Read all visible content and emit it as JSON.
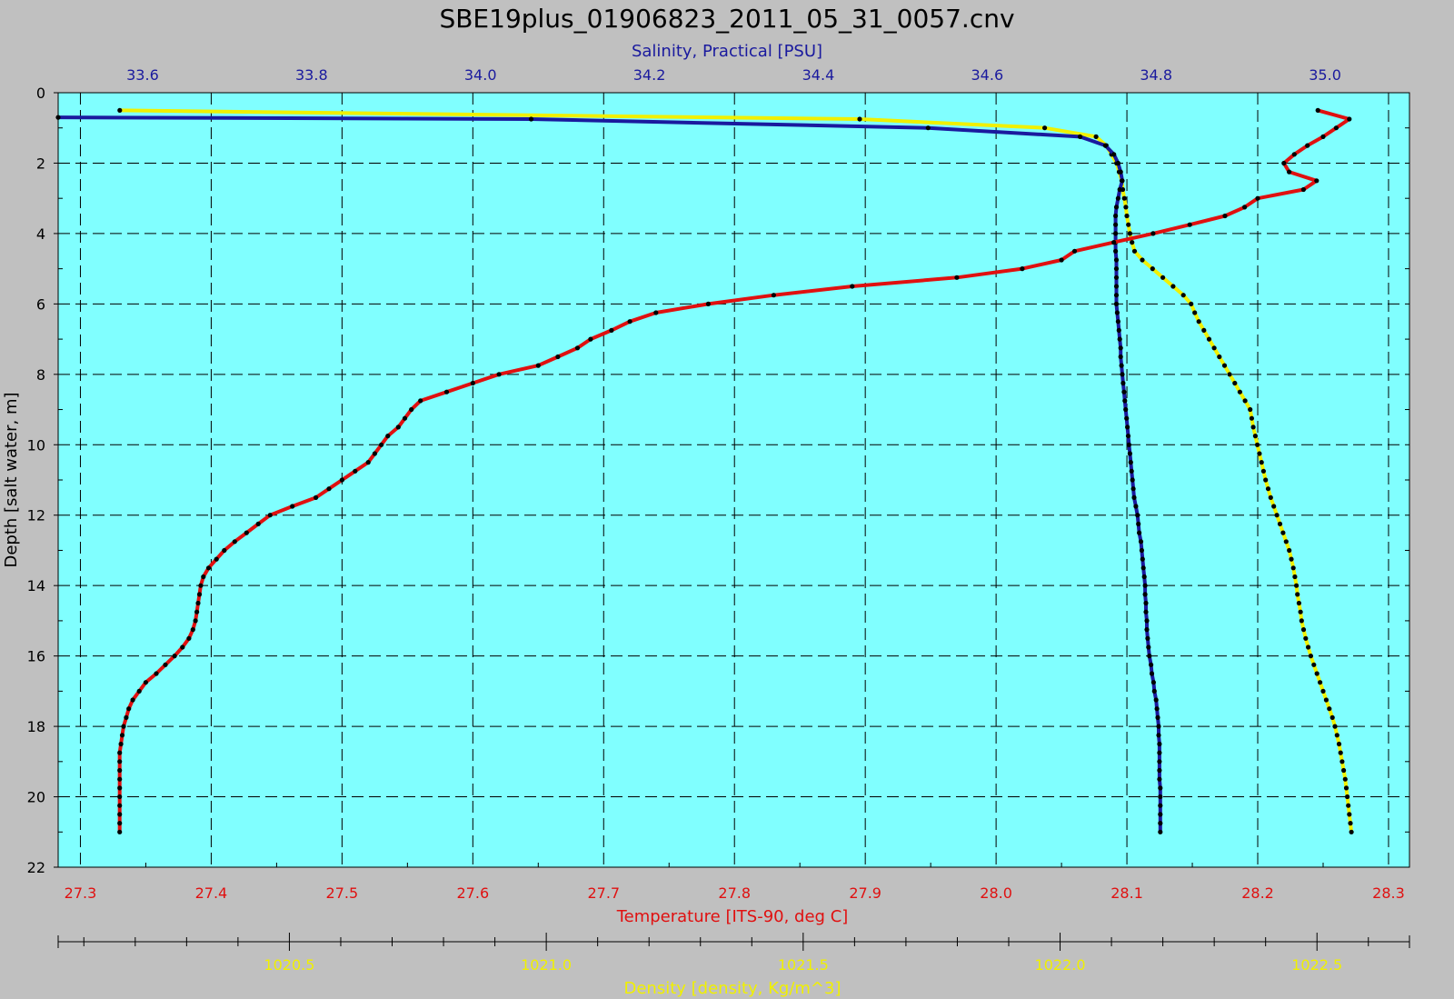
{
  "chart_data": {
    "type": "line",
    "title": "SBE19plus_01906823_2011_05_31_0057.cnv",
    "grid": true,
    "y_axis": {
      "label": "Depth [salt water, m]",
      "range": [
        0,
        22
      ],
      "inverted": true,
      "ticks": [
        "0",
        "2",
        "4",
        "6",
        "8",
        "10",
        "12",
        "14",
        "16",
        "18",
        "20",
        "22"
      ]
    },
    "axes": {
      "salinity": {
        "label": "Salinity, Practical [PSU]",
        "position": "top",
        "color": "#1a1a9e",
        "range": [
          33.5,
          35.1
        ],
        "ticks": [
          {
            "value": 33.6,
            "label": "33.6"
          },
          {
            "value": 33.8,
            "label": "33.8"
          },
          {
            "value": 34.0,
            "label": "34.0"
          },
          {
            "value": 34.2,
            "label": "34.2"
          },
          {
            "value": 34.4,
            "label": "34.4"
          },
          {
            "value": 34.6,
            "label": "34.6"
          },
          {
            "value": 34.8,
            "label": "34.8"
          },
          {
            "value": 35.0,
            "label": "35.0"
          }
        ]
      },
      "temperature": {
        "label": "Temperature [ITS-90, deg C]",
        "position": "bottom",
        "color": "#e01010",
        "range": [
          27.283,
          28.316
        ],
        "ticks": [
          {
            "value": 27.3,
            "label": "27.3"
          },
          {
            "value": 27.4,
            "label": "27.4"
          },
          {
            "value": 27.5,
            "label": "27.5"
          },
          {
            "value": 27.6,
            "label": "27.6"
          },
          {
            "value": 27.7,
            "label": "27.7"
          },
          {
            "value": 27.8,
            "label": "27.8"
          },
          {
            "value": 27.9,
            "label": "27.9"
          },
          {
            "value": 28.0,
            "label": "28.0"
          },
          {
            "value": 28.1,
            "label": "28.1"
          },
          {
            "value": 28.2,
            "label": "28.2"
          },
          {
            "value": 28.3,
            "label": "28.3"
          }
        ]
      },
      "density": {
        "label": "Density [density, Kg/m^3]",
        "position": "bottom-outer",
        "color": "#f0f000",
        "range": [
          1020.05,
          1022.68
        ],
        "ticks": [
          {
            "value": 1020.5,
            "label": "1020.5"
          },
          {
            "value": 1021.0,
            "label": "1021.0"
          },
          {
            "value": 1021.5,
            "label": "1021.5"
          },
          {
            "value": 1022.0,
            "label": "1022.0"
          },
          {
            "value": 1022.5,
            "label": "1022.5"
          }
        ]
      }
    },
    "series": [
      {
        "name": "Temperature",
        "axis": "temperature",
        "color": "#e01010",
        "points": [
          [
            28.246,
            0.5
          ],
          [
            28.27,
            0.75
          ],
          [
            28.26,
            1.0
          ],
          [
            28.25,
            1.25
          ],
          [
            28.238,
            1.5
          ],
          [
            28.228,
            1.75
          ],
          [
            28.22,
            2.0
          ],
          [
            28.224,
            2.25
          ],
          [
            28.245,
            2.5
          ],
          [
            28.235,
            2.75
          ],
          [
            28.2,
            3.0
          ],
          [
            28.19,
            3.25
          ],
          [
            28.175,
            3.5
          ],
          [
            28.148,
            3.75
          ],
          [
            28.12,
            4.0
          ],
          [
            28.09,
            4.25
          ],
          [
            28.06,
            4.5
          ],
          [
            28.05,
            4.75
          ],
          [
            28.02,
            5.0
          ],
          [
            27.97,
            5.25
          ],
          [
            27.89,
            5.5
          ],
          [
            27.83,
            5.75
          ],
          [
            27.78,
            6.0
          ],
          [
            27.74,
            6.25
          ],
          [
            27.72,
            6.5
          ],
          [
            27.706,
            6.75
          ],
          [
            27.69,
            7.0
          ],
          [
            27.68,
            7.25
          ],
          [
            27.665,
            7.5
          ],
          [
            27.65,
            7.75
          ],
          [
            27.62,
            8.0
          ],
          [
            27.6,
            8.25
          ],
          [
            27.58,
            8.5
          ],
          [
            27.56,
            8.75
          ],
          [
            27.553,
            9.0
          ],
          [
            27.548,
            9.25
          ],
          [
            27.543,
            9.5
          ],
          [
            27.535,
            9.75
          ],
          [
            27.53,
            10.0
          ],
          [
            27.525,
            10.25
          ],
          [
            27.52,
            10.5
          ],
          [
            27.51,
            10.75
          ],
          [
            27.5,
            11.0
          ],
          [
            27.49,
            11.25
          ],
          [
            27.48,
            11.5
          ],
          [
            27.462,
            11.75
          ],
          [
            27.445,
            12.0
          ],
          [
            27.436,
            12.25
          ],
          [
            27.427,
            12.5
          ],
          [
            27.418,
            12.75
          ],
          [
            27.41,
            13.0
          ],
          [
            27.404,
            13.25
          ],
          [
            27.398,
            13.5
          ],
          [
            27.394,
            13.75
          ],
          [
            27.392,
            14.0
          ],
          [
            27.391,
            14.25
          ],
          [
            27.39,
            14.5
          ],
          [
            27.389,
            14.75
          ],
          [
            27.388,
            15.0
          ],
          [
            27.386,
            15.25
          ],
          [
            27.383,
            15.5
          ],
          [
            27.378,
            15.75
          ],
          [
            27.372,
            16.0
          ],
          [
            27.365,
            16.25
          ],
          [
            27.358,
            16.5
          ],
          [
            27.35,
            16.75
          ],
          [
            27.345,
            17.0
          ],
          [
            27.34,
            17.25
          ],
          [
            27.337,
            17.5
          ],
          [
            27.335,
            17.75
          ],
          [
            27.333,
            18.0
          ],
          [
            27.332,
            18.25
          ],
          [
            27.331,
            18.5
          ],
          [
            27.33,
            18.75
          ],
          [
            27.33,
            19.0
          ],
          [
            27.33,
            19.25
          ],
          [
            27.33,
            19.5
          ],
          [
            27.33,
            19.75
          ],
          [
            27.33,
            20.0
          ],
          [
            27.33,
            20.25
          ],
          [
            27.33,
            20.5
          ],
          [
            27.33,
            20.75
          ],
          [
            27.33,
            21.0
          ]
        ]
      },
      {
        "name": "Salinity",
        "axis": "salinity",
        "color": "#1a1a9e",
        "points": [
          [
            33.5,
            0.7
          ],
          [
            34.06,
            0.75
          ],
          [
            34.53,
            1.0
          ],
          [
            34.71,
            1.25
          ],
          [
            34.74,
            1.5
          ],
          [
            34.75,
            1.75
          ],
          [
            34.755,
            2.0
          ],
          [
            34.758,
            2.25
          ],
          [
            34.76,
            2.5
          ],
          [
            34.757,
            2.75
          ],
          [
            34.755,
            3.0
          ],
          [
            34.753,
            3.25
          ],
          [
            34.752,
            3.5
          ],
          [
            34.752,
            3.75
          ],
          [
            34.752,
            4.0
          ],
          [
            34.752,
            4.25
          ],
          [
            34.752,
            4.5
          ],
          [
            34.753,
            4.75
          ],
          [
            34.753,
            5.0
          ],
          [
            34.753,
            5.25
          ],
          [
            34.753,
            5.5
          ],
          [
            34.753,
            5.75
          ],
          [
            34.753,
            6.0
          ],
          [
            34.754,
            6.25
          ],
          [
            34.755,
            6.5
          ],
          [
            34.756,
            6.75
          ],
          [
            34.757,
            7.0
          ],
          [
            34.758,
            7.25
          ],
          [
            34.758,
            7.5
          ],
          [
            34.759,
            7.75
          ],
          [
            34.76,
            8.0
          ],
          [
            34.761,
            8.25
          ],
          [
            34.762,
            8.5
          ],
          [
            34.763,
            8.75
          ],
          [
            34.764,
            9.0
          ],
          [
            34.765,
            9.25
          ],
          [
            34.766,
            9.5
          ],
          [
            34.767,
            9.75
          ],
          [
            34.768,
            10.0
          ],
          [
            34.769,
            10.25
          ],
          [
            34.77,
            10.5
          ],
          [
            34.771,
            10.75
          ],
          [
            34.772,
            11.0
          ],
          [
            34.773,
            11.25
          ],
          [
            34.774,
            11.5
          ],
          [
            34.776,
            11.75
          ],
          [
            34.778,
            12.0
          ],
          [
            34.779,
            12.25
          ],
          [
            34.78,
            12.5
          ],
          [
            34.782,
            12.75
          ],
          [
            34.783,
            13.0
          ],
          [
            34.784,
            13.25
          ],
          [
            34.785,
            13.5
          ],
          [
            34.786,
            13.75
          ],
          [
            34.787,
            14.0
          ],
          [
            34.787,
            14.25
          ],
          [
            34.788,
            14.5
          ],
          [
            34.788,
            14.75
          ],
          [
            34.789,
            15.0
          ],
          [
            34.789,
            15.25
          ],
          [
            34.79,
            15.5
          ],
          [
            34.791,
            15.75
          ],
          [
            34.792,
            16.0
          ],
          [
            34.794,
            16.25
          ],
          [
            34.795,
            16.5
          ],
          [
            34.797,
            16.75
          ],
          [
            34.798,
            17.0
          ],
          [
            34.8,
            17.25
          ],
          [
            34.801,
            17.5
          ],
          [
            34.802,
            17.75
          ],
          [
            34.803,
            18.0
          ],
          [
            34.803,
            18.25
          ],
          [
            34.804,
            18.5
          ],
          [
            34.804,
            18.75
          ],
          [
            34.804,
            19.0
          ],
          [
            34.804,
            19.25
          ],
          [
            34.804,
            19.5
          ],
          [
            34.805,
            19.75
          ],
          [
            34.805,
            20.0
          ],
          [
            34.805,
            20.25
          ],
          [
            34.805,
            20.5
          ],
          [
            34.805,
            20.75
          ],
          [
            34.805,
            21.0
          ]
        ]
      },
      {
        "name": "Density",
        "axis": "density",
        "color": "#f0f000",
        "points": [
          [
            1020.17,
            0.5
          ],
          [
            1021.61,
            0.75
          ],
          [
            1021.97,
            1.0
          ],
          [
            1022.07,
            1.25
          ],
          [
            1022.09,
            1.5
          ],
          [
            1022.1,
            1.75
          ],
          [
            1022.11,
            2.0
          ],
          [
            1022.115,
            2.25
          ],
          [
            1022.12,
            2.5
          ],
          [
            1022.122,
            2.75
          ],
          [
            1022.125,
            3.0
          ],
          [
            1022.128,
            3.25
          ],
          [
            1022.13,
            3.5
          ],
          [
            1022.133,
            3.75
          ],
          [
            1022.136,
            4.0
          ],
          [
            1022.14,
            4.25
          ],
          [
            1022.145,
            4.5
          ],
          [
            1022.16,
            4.75
          ],
          [
            1022.18,
            5.0
          ],
          [
            1022.2,
            5.25
          ],
          [
            1022.22,
            5.5
          ],
          [
            1022.24,
            5.75
          ],
          [
            1022.255,
            6.0
          ],
          [
            1022.262,
            6.25
          ],
          [
            1022.27,
            6.5
          ],
          [
            1022.28,
            6.75
          ],
          [
            1022.29,
            7.0
          ],
          [
            1022.3,
            7.25
          ],
          [
            1022.31,
            7.5
          ],
          [
            1022.32,
            7.75
          ],
          [
            1022.33,
            8.0
          ],
          [
            1022.34,
            8.25
          ],
          [
            1022.35,
            8.5
          ],
          [
            1022.36,
            8.75
          ],
          [
            1022.37,
            9.0
          ],
          [
            1022.373,
            9.25
          ],
          [
            1022.376,
            9.5
          ],
          [
            1022.38,
            9.75
          ],
          [
            1022.384,
            10.0
          ],
          [
            1022.388,
            10.25
          ],
          [
            1022.392,
            10.5
          ],
          [
            1022.396,
            10.75
          ],
          [
            1022.4,
            11.0
          ],
          [
            1022.405,
            11.25
          ],
          [
            1022.41,
            11.5
          ],
          [
            1022.416,
            11.75
          ],
          [
            1022.422,
            12.0
          ],
          [
            1022.428,
            12.25
          ],
          [
            1022.434,
            12.5
          ],
          [
            1022.44,
            12.75
          ],
          [
            1022.446,
            13.0
          ],
          [
            1022.45,
            13.25
          ],
          [
            1022.454,
            13.5
          ],
          [
            1022.457,
            13.75
          ],
          [
            1022.46,
            14.0
          ],
          [
            1022.462,
            14.25
          ],
          [
            1022.465,
            14.5
          ],
          [
            1022.468,
            14.75
          ],
          [
            1022.47,
            15.0
          ],
          [
            1022.474,
            15.25
          ],
          [
            1022.478,
            15.5
          ],
          [
            1022.483,
            15.75
          ],
          [
            1022.488,
            16.0
          ],
          [
            1022.494,
            16.25
          ],
          [
            1022.5,
            16.5
          ],
          [
            1022.506,
            16.75
          ],
          [
            1022.512,
            17.0
          ],
          [
            1022.518,
            17.25
          ],
          [
            1022.524,
            17.5
          ],
          [
            1022.53,
            17.75
          ],
          [
            1022.535,
            18.0
          ],
          [
            1022.539,
            18.25
          ],
          [
            1022.543,
            18.5
          ],
          [
            1022.546,
            18.75
          ],
          [
            1022.549,
            19.0
          ],
          [
            1022.552,
            19.25
          ],
          [
            1022.555,
            19.5
          ],
          [
            1022.557,
            19.75
          ],
          [
            1022.559,
            20.0
          ],
          [
            1022.561,
            20.25
          ],
          [
            1022.563,
            20.5
          ],
          [
            1022.565,
            20.75
          ],
          [
            1022.567,
            21.0
          ]
        ]
      }
    ]
  },
  "colors": {
    "window_background": "#c0c0c0",
    "plot_background": "#80ffff",
    "grid": "#000000",
    "marker": "#000000"
  }
}
